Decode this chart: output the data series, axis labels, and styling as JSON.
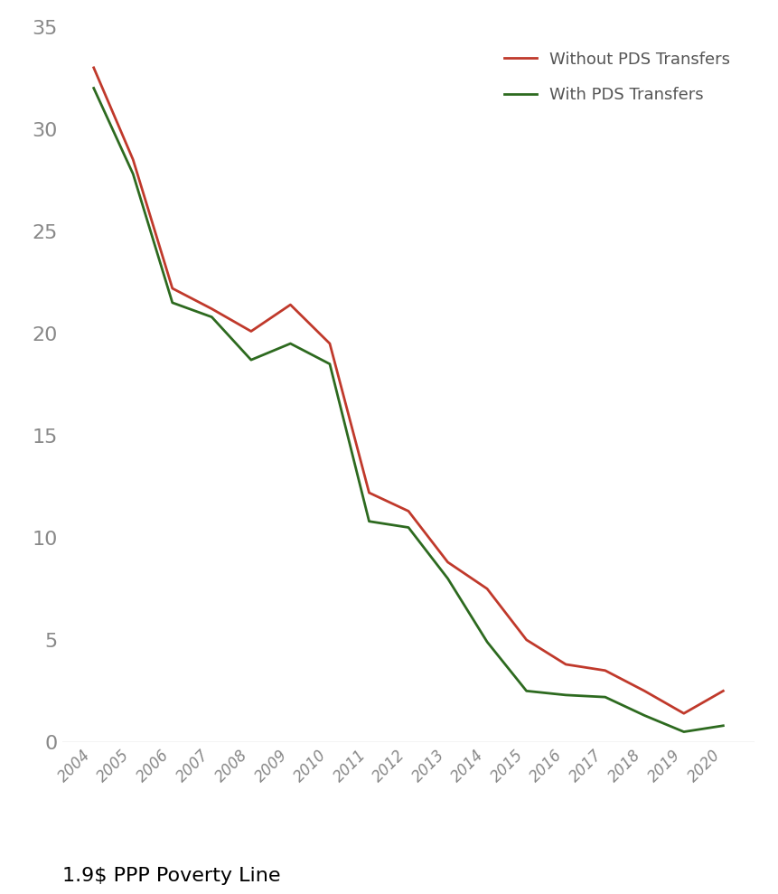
{
  "years": [
    2004,
    2005,
    2006,
    2007,
    2008,
    2009,
    2010,
    2011,
    2012,
    2013,
    2014,
    2015,
    2016,
    2017,
    2018,
    2019,
    2020
  ],
  "without_pds": [
    33.0,
    28.5,
    22.2,
    21.2,
    20.1,
    21.4,
    19.5,
    12.2,
    11.3,
    8.8,
    7.5,
    5.0,
    3.8,
    3.5,
    2.5,
    1.4,
    2.5
  ],
  "with_pds": [
    32.0,
    27.8,
    21.5,
    20.8,
    18.7,
    19.5,
    18.5,
    10.8,
    10.5,
    8.0,
    4.9,
    2.5,
    2.3,
    2.2,
    1.3,
    0.5,
    0.8
  ],
  "without_pds_color": "#c0392b",
  "with_pds_color": "#2d6a1f",
  "without_pds_label": "Without PDS Transfers",
  "with_pds_label": "With PDS Transfers",
  "ylim": [
    0,
    35
  ],
  "yticks": [
    0,
    5,
    10,
    15,
    20,
    25,
    30,
    35
  ],
  "footnote": "1.9$ PPP Poverty Line",
  "line_width": 2.0,
  "background_color": "#ffffff",
  "tick_color": "#888888",
  "legend_text_color": "#555555",
  "ytick_fontsize": 16,
  "xtick_fontsize": 12,
  "legend_fontsize": 13,
  "footnote_fontsize": 16
}
